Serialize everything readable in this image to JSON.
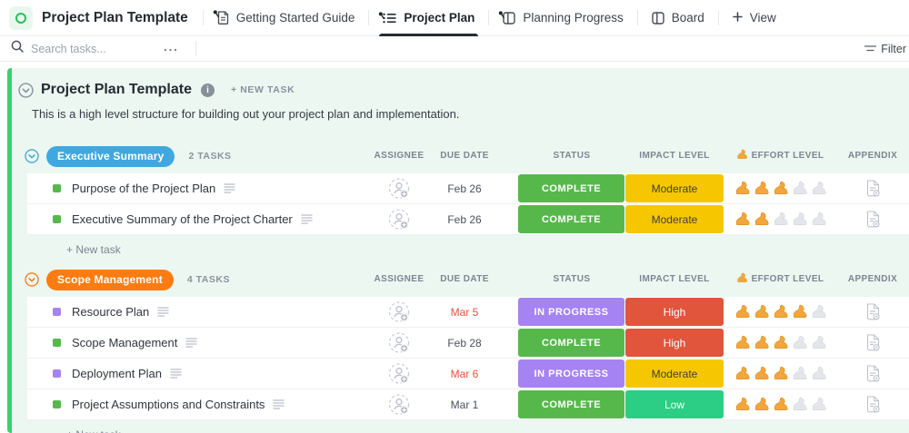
{
  "topbar": {
    "list_title": "Project Plan Template",
    "tabs": [
      {
        "label": "Getting Started Guide",
        "icon": "document-icon",
        "pinned": true,
        "active": false
      },
      {
        "label": "Project Plan",
        "icon": "list-icon",
        "pinned": true,
        "active": true
      },
      {
        "label": "Planning Progress",
        "icon": "board-icon",
        "pinned": true,
        "active": false
      },
      {
        "label": "Board",
        "icon": "board-icon",
        "pinned": false,
        "active": false
      }
    ],
    "add_view_label": "View"
  },
  "toolbar": {
    "search_placeholder": "Search tasks...",
    "more_icon": "...",
    "filter_label": "Filter"
  },
  "main": {
    "title": "Project Plan Template",
    "new_task_label": "+ NEW TASK",
    "description": "This is a high level structure for building out your project plan and implementation.",
    "add_task_label": "+ New task",
    "columns": [
      {
        "id": "assignee",
        "label": "ASSIGNEE"
      },
      {
        "id": "due",
        "label": "DUE DATE"
      },
      {
        "id": "status",
        "label": "STATUS"
      },
      {
        "id": "impact",
        "label": "IMPACT LEVEL"
      },
      {
        "id": "effort",
        "label": "EFFORT LEVEL",
        "icon": "bicep-icon"
      },
      {
        "id": "appendix",
        "label": "APPENDIX"
      }
    ],
    "effort_max": 5,
    "colors": {
      "complete": "#56b84b",
      "in_progress": "#a583f2",
      "impact_high": "#e0553b",
      "impact_moderate": "#f6c700",
      "impact_low": "#2bce84",
      "overdue_red": "#ef4f3d",
      "group_blue": "#40a8e0",
      "group_orange": "#fc7c12",
      "accent_green": "#3ad06f"
    },
    "groups": [
      {
        "name": "Executive Summary",
        "color": "#40a8e0",
        "count_label": "2 TASKS",
        "tasks": [
          {
            "name": "Purpose of the Project Plan",
            "dot_color": "#56b84b",
            "due_date": "Feb 26",
            "overdue": false,
            "status": "COMPLETE",
            "status_color": "#56b84b",
            "impact": "Moderate",
            "impact_color": "#f6c700",
            "impact_text_color": "#3e3e3e",
            "effort": 3
          },
          {
            "name": "Executive Summary of the Project Charter",
            "dot_color": "#56b84b",
            "due_date": "Feb 26",
            "overdue": false,
            "status": "COMPLETE",
            "status_color": "#56b84b",
            "impact": "Moderate",
            "impact_color": "#f6c700",
            "impact_text_color": "#3e3e3e",
            "effort": 2
          }
        ]
      },
      {
        "name": "Scope Management",
        "color": "#fc7c12",
        "count_label": "4 TASKS",
        "tasks": [
          {
            "name": "Resource Plan",
            "dot_color": "#a583f2",
            "due_date": "Mar 5",
            "overdue": true,
            "status": "IN PROGRESS",
            "status_color": "#a583f2",
            "impact": "High",
            "impact_color": "#e0553b",
            "impact_text_color": "#ffffff",
            "effort": 4
          },
          {
            "name": "Scope Management",
            "dot_color": "#56b84b",
            "due_date": "Feb 28",
            "overdue": false,
            "status": "COMPLETE",
            "status_color": "#56b84b",
            "impact": "High",
            "impact_color": "#e0553b",
            "impact_text_color": "#ffffff",
            "effort": 3
          },
          {
            "name": "Deployment Plan",
            "dot_color": "#a583f2",
            "due_date": "Mar 6",
            "overdue": true,
            "status": "IN PROGRESS",
            "status_color": "#a583f2",
            "impact": "Moderate",
            "impact_color": "#f6c700",
            "impact_text_color": "#3e3e3e",
            "effort": 3
          },
          {
            "name": "Project Assumptions and Constraints",
            "dot_color": "#56b84b",
            "due_date": "Mar 1",
            "overdue": false,
            "status": "COMPLETE",
            "status_color": "#56b84b",
            "impact": "Low",
            "impact_color": "#2bce84",
            "impact_text_color": "#ffffff",
            "effort": 3
          }
        ]
      }
    ]
  }
}
